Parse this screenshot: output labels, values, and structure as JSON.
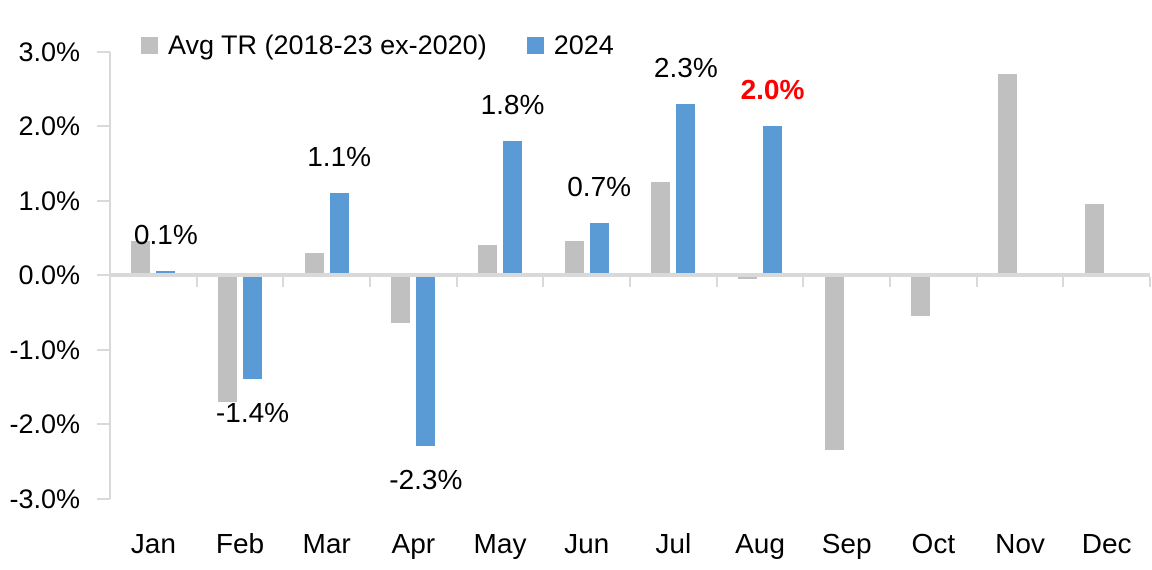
{
  "chart_data": {
    "type": "bar",
    "title": "",
    "xlabel": "",
    "ylabel": "",
    "categories": [
      "Jan",
      "Feb",
      "Mar",
      "Apr",
      "May",
      "Jun",
      "Jul",
      "Aug",
      "Sep",
      "Oct",
      "Nov",
      "Dec"
    ],
    "series": [
      {
        "name": "Avg TR (2018-23 ex-2020)",
        "color": "#C0C0C0",
        "values": [
          0.45,
          -1.7,
          0.3,
          -0.65,
          0.4,
          0.45,
          1.25,
          -0.05,
          -2.35,
          -0.55,
          2.7,
          0.95
        ]
      },
      {
        "name": "2024",
        "color": "#5B9BD5",
        "values": [
          0.05,
          -1.4,
          1.1,
          -2.3,
          1.8,
          0.7,
          2.3,
          2.0,
          null,
          null,
          null,
          null
        ],
        "data_labels": [
          "0.1%",
          "-1.4%",
          "1.1%",
          "-2.3%",
          "1.8%",
          "0.7%",
          "2.3%",
          "2.0%",
          "",
          "",
          "",
          ""
        ],
        "data_label_colors": [
          "#000000",
          "#000000",
          "#000000",
          "#000000",
          "#000000",
          "#000000",
          "#000000",
          "#FF0000",
          "",
          "",
          "",
          ""
        ],
        "data_label_bold": [
          false,
          false,
          false,
          false,
          false,
          false,
          false,
          true,
          false,
          false,
          false,
          false
        ]
      }
    ],
    "y_ticks": [
      "3.0%",
      "2.0%",
      "1.0%",
      "0.0%",
      "-1.0%",
      "-2.0%",
      "-3.0%"
    ],
    "y_tick_values": [
      3,
      2,
      1,
      0,
      -1,
      -2,
      -3
    ],
    "ylim": [
      -3,
      3
    ],
    "grid": false,
    "legend_position": "top",
    "axis_color": "#D9D9D9",
    "text_color": "#000000",
    "highlight_color": "#FF0000",
    "background": "#FFFFFF"
  }
}
